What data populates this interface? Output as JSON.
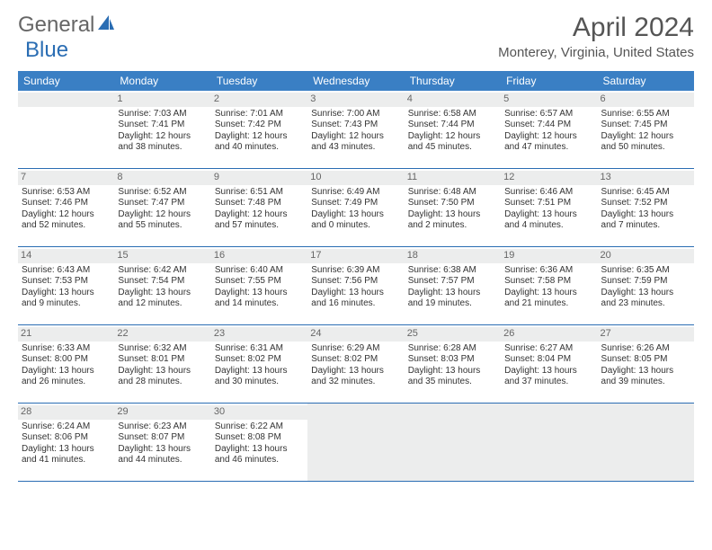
{
  "brand": {
    "part1": "General",
    "part2": "Blue"
  },
  "title": "April 2024",
  "location": "Monterey, Virginia, United States",
  "header_bg": "#3a7fc4",
  "accent": "#2a6db3",
  "weekdays": [
    "Sunday",
    "Monday",
    "Tuesday",
    "Wednesday",
    "Thursday",
    "Friday",
    "Saturday"
  ],
  "leading_blanks": 1,
  "trailing_blanks": 4,
  "days": [
    {
      "n": "1",
      "sunrise": "7:03 AM",
      "sunset": "7:41 PM",
      "dl1": "12 hours",
      "dl2": "and 38 minutes."
    },
    {
      "n": "2",
      "sunrise": "7:01 AM",
      "sunset": "7:42 PM",
      "dl1": "12 hours",
      "dl2": "and 40 minutes."
    },
    {
      "n": "3",
      "sunrise": "7:00 AM",
      "sunset": "7:43 PM",
      "dl1": "12 hours",
      "dl2": "and 43 minutes."
    },
    {
      "n": "4",
      "sunrise": "6:58 AM",
      "sunset": "7:44 PM",
      "dl1": "12 hours",
      "dl2": "and 45 minutes."
    },
    {
      "n": "5",
      "sunrise": "6:57 AM",
      "sunset": "7:44 PM",
      "dl1": "12 hours",
      "dl2": "and 47 minutes."
    },
    {
      "n": "6",
      "sunrise": "6:55 AM",
      "sunset": "7:45 PM",
      "dl1": "12 hours",
      "dl2": "and 50 minutes."
    },
    {
      "n": "7",
      "sunrise": "6:53 AM",
      "sunset": "7:46 PM",
      "dl1": "12 hours",
      "dl2": "and 52 minutes."
    },
    {
      "n": "8",
      "sunrise": "6:52 AM",
      "sunset": "7:47 PM",
      "dl1": "12 hours",
      "dl2": "and 55 minutes."
    },
    {
      "n": "9",
      "sunrise": "6:51 AM",
      "sunset": "7:48 PM",
      "dl1": "12 hours",
      "dl2": "and 57 minutes."
    },
    {
      "n": "10",
      "sunrise": "6:49 AM",
      "sunset": "7:49 PM",
      "dl1": "13 hours",
      "dl2": "and 0 minutes."
    },
    {
      "n": "11",
      "sunrise": "6:48 AM",
      "sunset": "7:50 PM",
      "dl1": "13 hours",
      "dl2": "and 2 minutes."
    },
    {
      "n": "12",
      "sunrise": "6:46 AM",
      "sunset": "7:51 PM",
      "dl1": "13 hours",
      "dl2": "and 4 minutes."
    },
    {
      "n": "13",
      "sunrise": "6:45 AM",
      "sunset": "7:52 PM",
      "dl1": "13 hours",
      "dl2": "and 7 minutes."
    },
    {
      "n": "14",
      "sunrise": "6:43 AM",
      "sunset": "7:53 PM",
      "dl1": "13 hours",
      "dl2": "and 9 minutes."
    },
    {
      "n": "15",
      "sunrise": "6:42 AM",
      "sunset": "7:54 PM",
      "dl1": "13 hours",
      "dl2": "and 12 minutes."
    },
    {
      "n": "16",
      "sunrise": "6:40 AM",
      "sunset": "7:55 PM",
      "dl1": "13 hours",
      "dl2": "and 14 minutes."
    },
    {
      "n": "17",
      "sunrise": "6:39 AM",
      "sunset": "7:56 PM",
      "dl1": "13 hours",
      "dl2": "and 16 minutes."
    },
    {
      "n": "18",
      "sunrise": "6:38 AM",
      "sunset": "7:57 PM",
      "dl1": "13 hours",
      "dl2": "and 19 minutes."
    },
    {
      "n": "19",
      "sunrise": "6:36 AM",
      "sunset": "7:58 PM",
      "dl1": "13 hours",
      "dl2": "and 21 minutes."
    },
    {
      "n": "20",
      "sunrise": "6:35 AM",
      "sunset": "7:59 PM",
      "dl1": "13 hours",
      "dl2": "and 23 minutes."
    },
    {
      "n": "21",
      "sunrise": "6:33 AM",
      "sunset": "8:00 PM",
      "dl1": "13 hours",
      "dl2": "and 26 minutes."
    },
    {
      "n": "22",
      "sunrise": "6:32 AM",
      "sunset": "8:01 PM",
      "dl1": "13 hours",
      "dl2": "and 28 minutes."
    },
    {
      "n": "23",
      "sunrise": "6:31 AM",
      "sunset": "8:02 PM",
      "dl1": "13 hours",
      "dl2": "and 30 minutes."
    },
    {
      "n": "24",
      "sunrise": "6:29 AM",
      "sunset": "8:02 PM",
      "dl1": "13 hours",
      "dl2": "and 32 minutes."
    },
    {
      "n": "25",
      "sunrise": "6:28 AM",
      "sunset": "8:03 PM",
      "dl1": "13 hours",
      "dl2": "and 35 minutes."
    },
    {
      "n": "26",
      "sunrise": "6:27 AM",
      "sunset": "8:04 PM",
      "dl1": "13 hours",
      "dl2": "and 37 minutes."
    },
    {
      "n": "27",
      "sunrise": "6:26 AM",
      "sunset": "8:05 PM",
      "dl1": "13 hours",
      "dl2": "and 39 minutes."
    },
    {
      "n": "28",
      "sunrise": "6:24 AM",
      "sunset": "8:06 PM",
      "dl1": "13 hours",
      "dl2": "and 41 minutes."
    },
    {
      "n": "29",
      "sunrise": "6:23 AM",
      "sunset": "8:07 PM",
      "dl1": "13 hours",
      "dl2": "and 44 minutes."
    },
    {
      "n": "30",
      "sunrise": "6:22 AM",
      "sunset": "8:08 PM",
      "dl1": "13 hours",
      "dl2": "and 46 minutes."
    }
  ],
  "labels": {
    "sunrise": "Sunrise:",
    "sunset": "Sunset:",
    "daylight": "Daylight:"
  }
}
